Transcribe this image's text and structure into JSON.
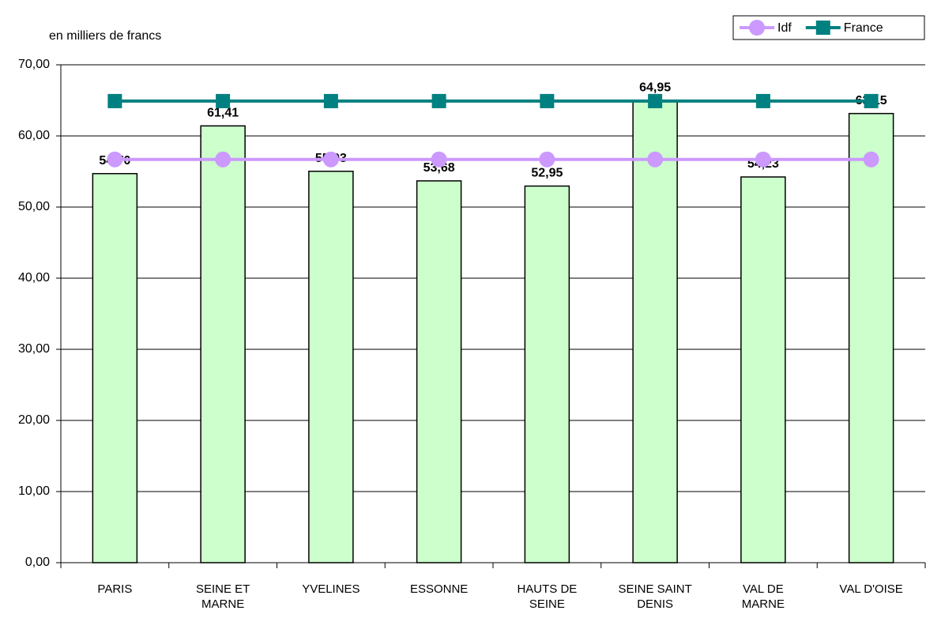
{
  "chart_data": {
    "type": "bar_line",
    "title": "en milliers de francs",
    "categories": [
      "PARIS",
      "SEINE ET MARNE",
      "YVELINES",
      "ESSONNE",
      "HAUTS DE SEINE",
      "SEINE SAINT DENIS",
      "VAL DE MARNE",
      "VAL D'OISE"
    ],
    "values": [
      54.7,
      61.41,
      55.03,
      53.68,
      52.95,
      64.95,
      54.23,
      63.15
    ],
    "value_labels": [
      "54,70",
      "61,41",
      "55,03",
      "53,68",
      "52,95",
      "64,95",
      "54,23",
      "63,15"
    ],
    "color": "#ccffcc",
    "series": [
      {
        "name": "Idf",
        "color": "#cc99ff",
        "values": [
          56.7,
          56.7,
          56.7,
          56.7,
          56.7,
          56.7,
          56.7,
          56.7
        ]
      },
      {
        "name": "France",
        "color": "#008080",
        "values": [
          64.9,
          64.9,
          64.9,
          64.9,
          64.9,
          64.9,
          64.9,
          64.9
        ]
      }
    ],
    "ylim": [
      0,
      70
    ],
    "yticks": [
      {
        "value": 0,
        "label": "0,00"
      },
      {
        "value": 10,
        "label": "10,00"
      },
      {
        "value": 20,
        "label": "20,00"
      },
      {
        "value": 30,
        "label": "30,00"
      },
      {
        "value": 40,
        "label": "40,00"
      },
      {
        "value": 50,
        "label": "50,00"
      },
      {
        "value": 60,
        "label": "60,00"
      },
      {
        "value": 70,
        "label": "70,00"
      }
    ],
    "grid": true,
    "legend": "top-right"
  }
}
